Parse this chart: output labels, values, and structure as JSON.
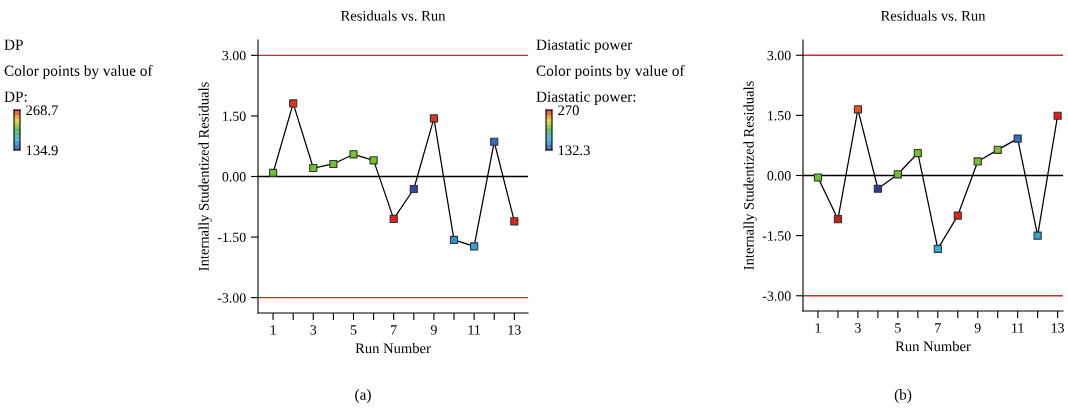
{
  "chart_data": [
    {
      "type": "line",
      "title": "Residuals vs. Run",
      "xlabel": "Run Number",
      "ylabel": "Internally Studentized Residuals",
      "marker": "square",
      "line_style": "solid",
      "grid": false,
      "legend": false,
      "x": [
        1,
        2,
        3,
        4,
        5,
        6,
        7,
        8,
        9,
        10,
        11,
        12,
        13
      ],
      "series": [
        {
          "color": "#000000",
          "values": [
            0.09,
            1.81,
            0.21,
            0.31,
            0.55,
            0.4,
            -1.05,
            -0.31,
            1.44,
            -1.57,
            -1.73,
            0.86,
            -1.11
          ],
          "colors": [
            "#6fc02a",
            "#e8301c",
            "#6fc02a",
            "#6fc02a",
            "#7cc22a",
            "#6fc02a",
            "#e8201c",
            "#2c4aa8",
            "#e8301c",
            "#2f8fd0",
            "#2fa8d8",
            "#2f70c8",
            "#e8201c"
          ]
        }
      ],
      "xlim": [
        0.25,
        13.68
      ],
      "ylim": [
        -3.38,
        3.38
      ],
      "xticks": [
        1,
        {
          "value": 2,
          "label": null
        },
        3,
        {
          "value": 4,
          "label": null
        },
        5,
        {
          "value": 6,
          "label": null
        },
        7,
        {
          "value": 8,
          "label": null
        },
        9,
        {
          "value": 10,
          "label": null
        },
        11,
        {
          "value": 12,
          "label": null
        },
        13
      ],
      "yticks": [
        {
          "value": -3,
          "label": "-3.00"
        },
        {
          "value": -1.5,
          "label": "-1.50"
        },
        {
          "value": 0,
          "label": "0.00"
        },
        {
          "value": 1.5,
          "label": "1.50"
        },
        {
          "value": 3,
          "label": "3.00"
        }
      ],
      "ref_lines": [
        {
          "axis": "y",
          "value": 3,
          "color": "#e8202a"
        },
        {
          "axis": "y",
          "value": 0,
          "color": "#000000"
        },
        {
          "axis": "y",
          "value": -3,
          "color": "#e8202a"
        }
      ],
      "clabel": "DP:",
      "clim": [
        134.9,
        268.7
      ],
      "cticks": [
        134.9,
        268.7
      ],
      "annotations": [
        "DP",
        "Color points by value of",
        "(a)"
      ]
    },
    {
      "type": "line",
      "title": "Residuals vs. Run",
      "xlabel": "Run Number",
      "ylabel": "Internally Studentized Residuals",
      "marker": "square",
      "line_style": "solid",
      "grid": false,
      "legend": false,
      "x": [
        1,
        2,
        3,
        4,
        5,
        6,
        7,
        8,
        9,
        10,
        11,
        12,
        13
      ],
      "series": [
        {
          "color": "#000000",
          "values": [
            -0.05,
            -1.09,
            1.65,
            -0.33,
            0.03,
            0.56,
            -1.83,
            -1.0,
            0.35,
            0.64,
            0.92,
            -1.5,
            1.49
          ],
          "colors": [
            "#6fc02a",
            "#c8201c",
            "#f0501c",
            "#2c3a98",
            "#6fc02a",
            "#6fc02a",
            "#2fb0e0",
            "#e8201c",
            "#7cc22a",
            "#7cc22a",
            "#2f70c8",
            "#2fa8d8",
            "#e8201c"
          ]
        }
      ],
      "xlim": [
        0.25,
        13.27
      ],
      "ylim": [
        -3.38,
        3.38
      ],
      "xticks": [
        1,
        {
          "value": 2,
          "label": null
        },
        3,
        {
          "value": 4,
          "label": null
        },
        5,
        {
          "value": 6,
          "label": null
        },
        7,
        {
          "value": 8,
          "label": null
        },
        9,
        {
          "value": 10,
          "label": null
        },
        11,
        {
          "value": 12,
          "label": null
        },
        13
      ],
      "yticks": [
        {
          "value": -3,
          "label": "-3.00"
        },
        {
          "value": -1.5,
          "label": "-1.50"
        },
        {
          "value": 0,
          "label": "0.00"
        },
        {
          "value": 1.5,
          "label": "1.50"
        },
        {
          "value": 3,
          "label": "3.00"
        }
      ],
      "ref_lines": [
        {
          "axis": "y",
          "value": 3,
          "color": "#e8202a"
        },
        {
          "axis": "y",
          "value": 0,
          "color": "#000000"
        },
        {
          "axis": "y",
          "value": -3,
          "color": "#e8202a"
        }
      ],
      "clabel": "Diastatic power:",
      "clim": [
        132.3,
        270
      ],
      "cticks": [
        132.3,
        270
      ],
      "annotations": [
        "Diastatic power",
        "Color points by value of",
        "(b)"
      ]
    }
  ]
}
